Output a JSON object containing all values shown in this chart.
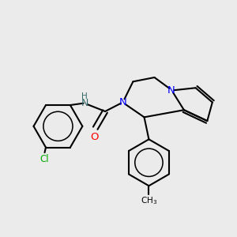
{
  "background_color": "#ebebeb",
  "bond_color": "#000000",
  "bond_width": 1.5,
  "atom_colors": {
    "N": "#0000ff",
    "O": "#ff0000",
    "Cl": "#00aa00",
    "NH": "#008080",
    "C": "#000000"
  },
  "figsize": [
    3.0,
    3.0
  ],
  "dpi": 100
}
